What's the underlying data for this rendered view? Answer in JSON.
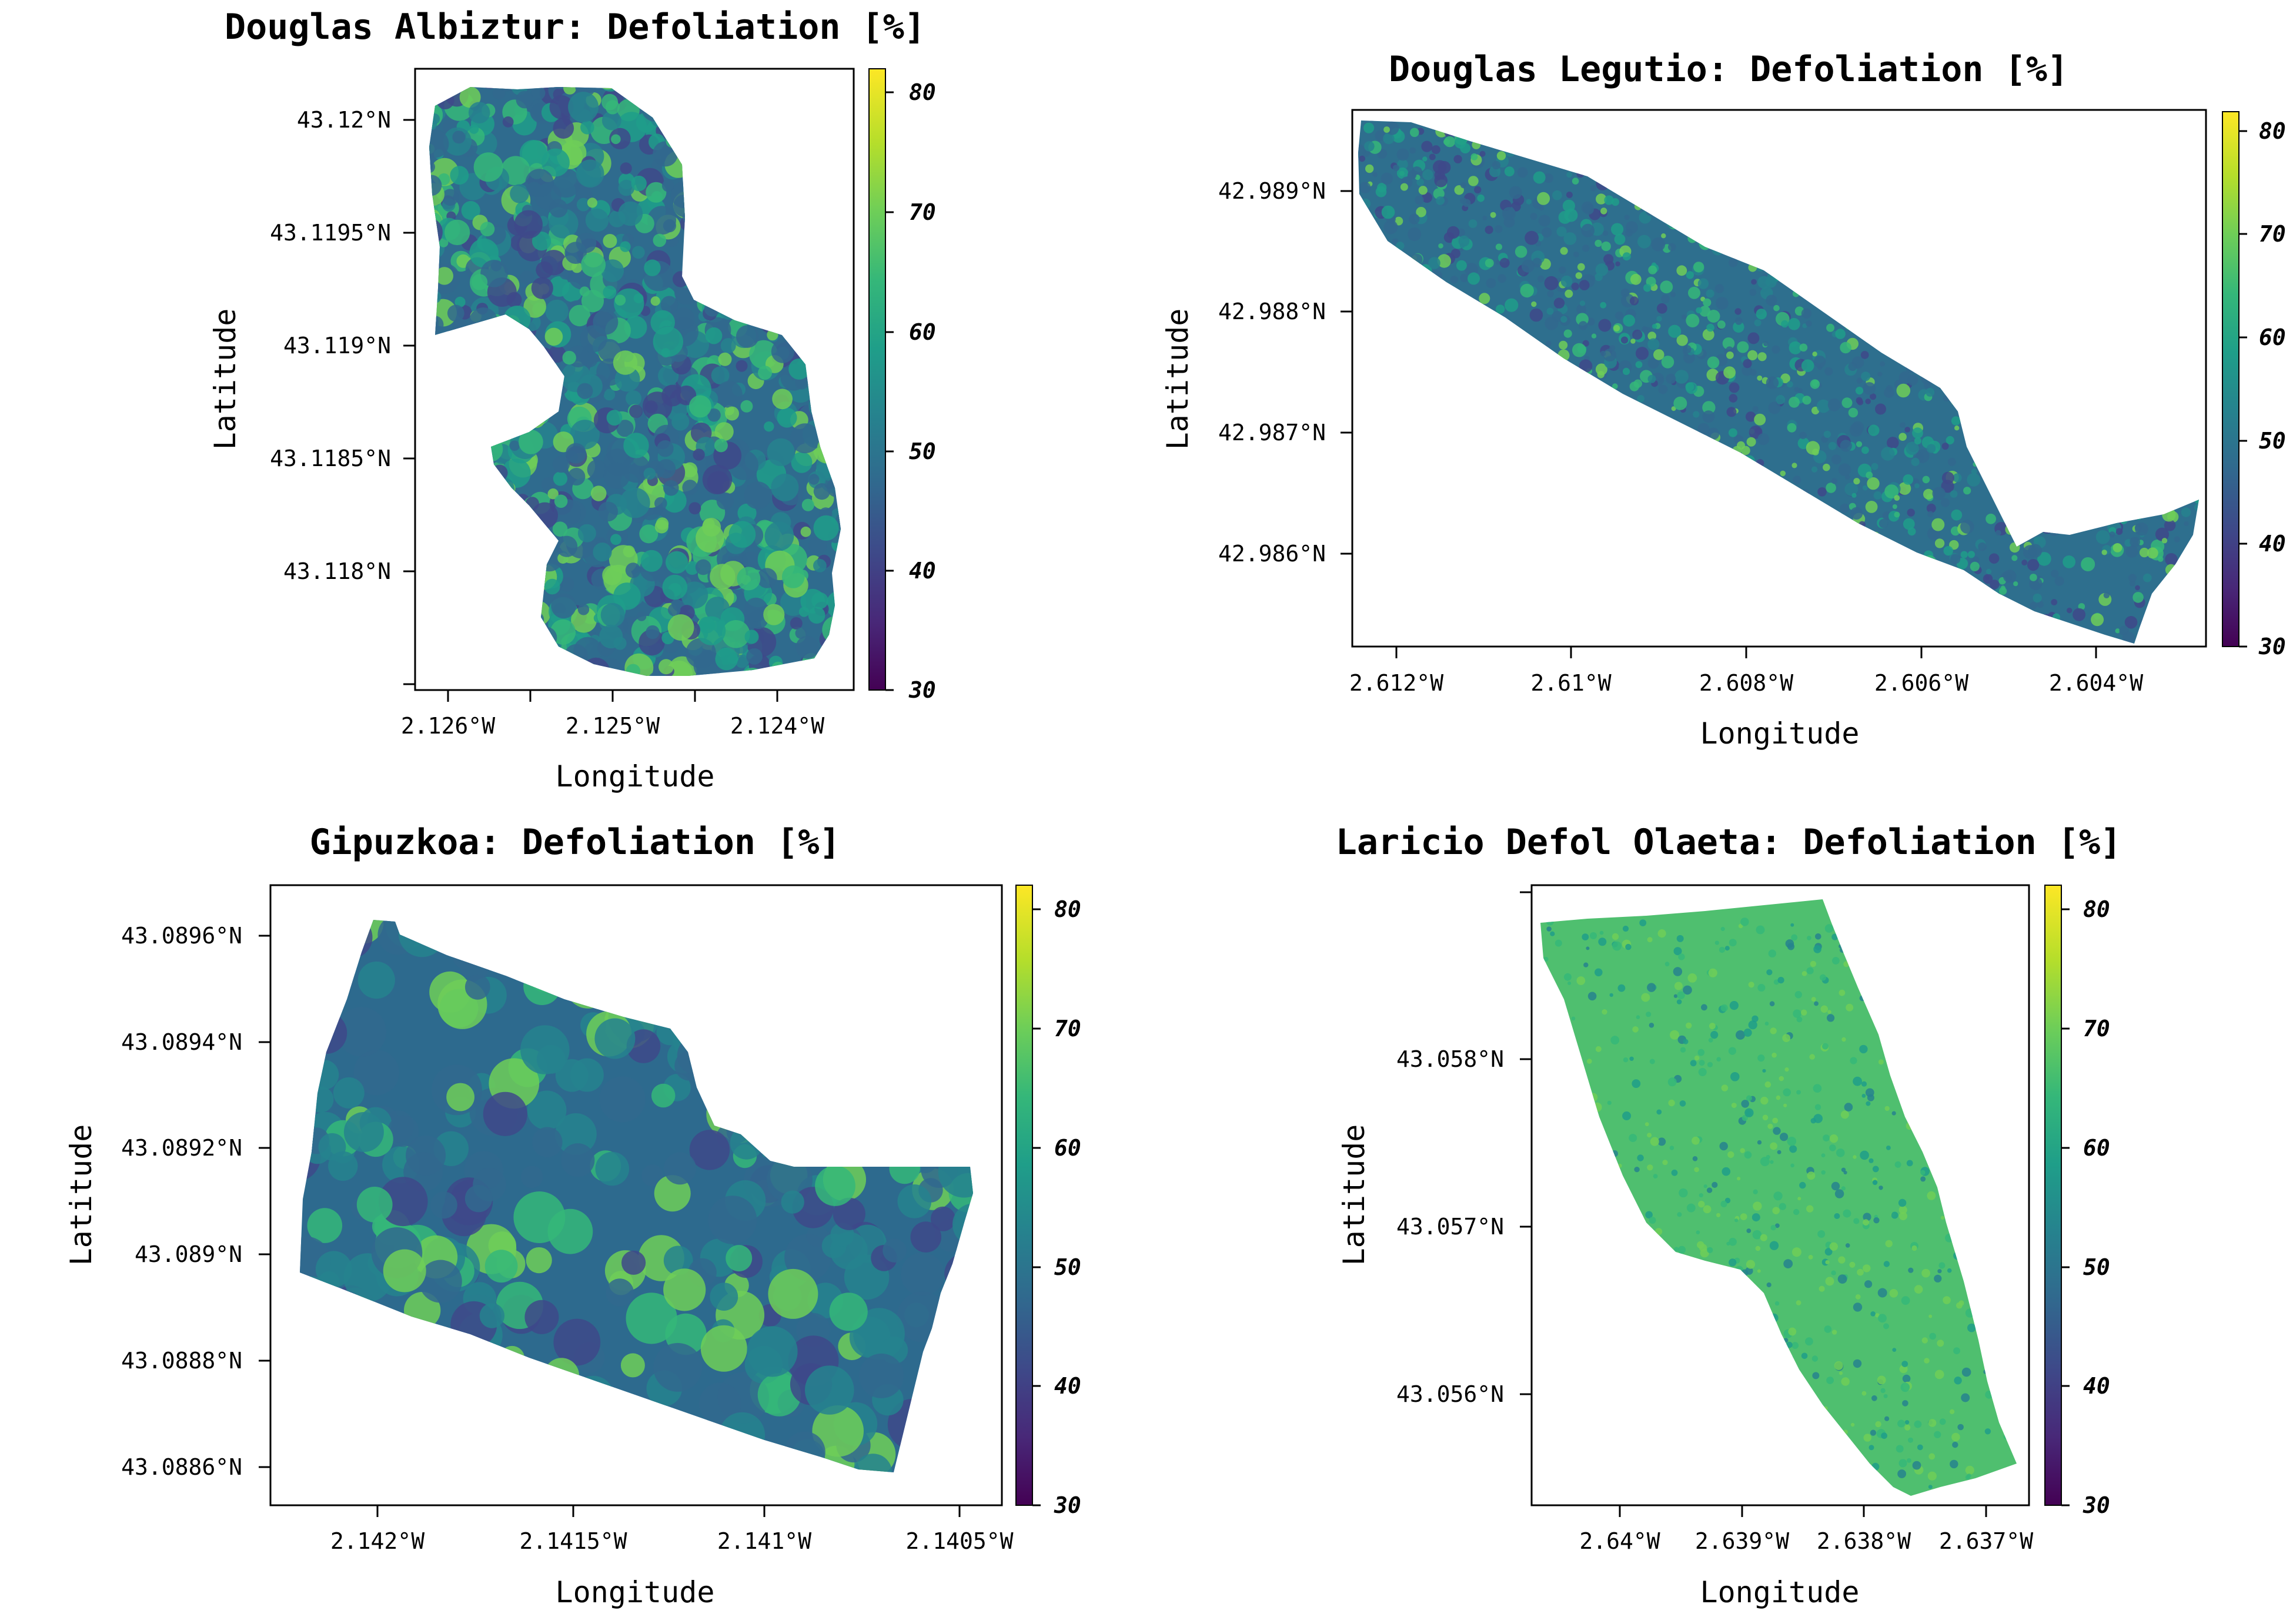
{
  "chart_data": [
    {
      "type": "heatmap",
      "title": "Douglas Albiztur: Defoliation [%]",
      "xlabel": "Longitude",
      "ylabel": "Latitude",
      "x_ticks": [
        "2.126°W",
        "2.125°W",
        "2.124°W"
      ],
      "y_ticks": [
        "43.12°N",
        "43.1195°N",
        "43.119°N",
        "43.1185°N",
        "43.118°N"
      ],
      "colorbar": {
        "ticks": [
          "80",
          "70",
          "60",
          "50",
          "40",
          "30"
        ],
        "range": [
          30,
          82
        ],
        "colormap": "viridis"
      },
      "mean_value": 55
    },
    {
      "type": "heatmap",
      "title": "Douglas Legutio: Defoliation [%]",
      "xlabel": "Longitude",
      "ylabel": "Latitude",
      "x_ticks": [
        "2.612°W",
        "2.61°W",
        "2.608°W",
        "2.606°W",
        "2.604°W"
      ],
      "y_ticks": [
        "42.989°N",
        "42.988°N",
        "42.987°N",
        "42.986°N"
      ],
      "colorbar": {
        "ticks": [
          "80",
          "70",
          "60",
          "50",
          "40",
          "30"
        ],
        "range": [
          30,
          82
        ],
        "colormap": "viridis"
      },
      "mean_value": 53
    },
    {
      "type": "heatmap",
      "title": "Gipuzkoa: Defoliation [%]",
      "xlabel": "Longitude",
      "ylabel": "Latitude",
      "x_ticks": [
        "2.142°W",
        "2.1415°W",
        "2.141°W",
        "2.1405°W"
      ],
      "y_ticks": [
        "43.0896°N",
        "43.0894°N",
        "43.0892°N",
        "43.089°N",
        "43.0888°N",
        "43.0886°N"
      ],
      "colorbar": {
        "ticks": [
          "80",
          "70",
          "60",
          "50",
          "40",
          "30"
        ],
        "range": [
          30,
          82
        ],
        "colormap": "viridis"
      },
      "mean_value": 52
    },
    {
      "type": "heatmap",
      "title": "Laricio Defol Olaeta: Defoliation [%]",
      "xlabel": "Longitude",
      "ylabel": "Latitude",
      "x_ticks": [
        "2.64°W",
        "2.639°W",
        "2.638°W",
        "2.637°W"
      ],
      "y_ticks": [
        "43.058°N",
        "43.057°N",
        "43.056°N"
      ],
      "colorbar": {
        "ticks": [
          "80",
          "70",
          "60",
          "50",
          "40",
          "30"
        ],
        "range": [
          30,
          82
        ],
        "colormap": "viridis"
      },
      "mean_value": 64
    }
  ],
  "colors": {
    "viridis": [
      "#440154",
      "#482878",
      "#3e4989",
      "#31688e",
      "#26828e",
      "#1f9e89",
      "#35b779",
      "#6ece58",
      "#b5de2b",
      "#fde725"
    ]
  }
}
